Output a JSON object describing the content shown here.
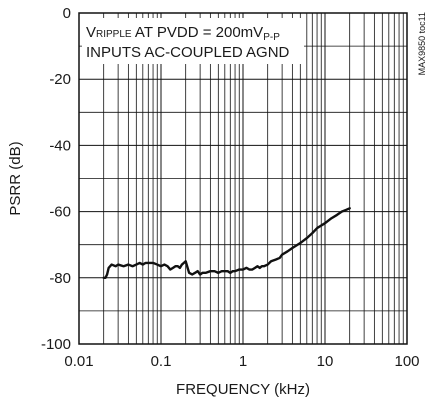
{
  "chart_data": {
    "type": "line",
    "title": "",
    "xlabel": "FREQUENCY (kHz)",
    "ylabel": "PSRR (dB)",
    "xscale": "log",
    "xlim": [
      0.01,
      100
    ],
    "ylim": [
      -100,
      0
    ],
    "grid": true,
    "x_ticks": [
      0.01,
      0.1,
      1,
      10,
      100
    ],
    "x_tick_labels": [
      "0.01",
      "0.1",
      "1",
      "10",
      "100"
    ],
    "y_ticks": [
      0,
      -20,
      -40,
      -60,
      -80,
      -100
    ],
    "y_tick_labels": [
      "0",
      "-20",
      "-40",
      "-60",
      "-80",
      "-100"
    ],
    "annotation": {
      "line1_v": "V",
      "line1_sub": "RIPPLE",
      "line1_mid": " AT PVDD = 200mV",
      "line1_sub2": "P-P",
      "line2": "INPUTS AC-COUPLED AGND"
    },
    "side_label": "MAX9850 toc11",
    "series": [
      {
        "color": "#111111",
        "x": [
          0.02,
          0.021,
          0.022,
          0.023,
          0.025,
          0.028,
          0.03,
          0.035,
          0.04,
          0.045,
          0.05,
          0.055,
          0.06,
          0.065,
          0.07,
          0.08,
          0.09,
          0.1,
          0.11,
          0.12,
          0.13,
          0.14,
          0.15,
          0.16,
          0.17,
          0.18,
          0.19,
          0.2,
          0.22,
          0.24,
          0.26,
          0.28,
          0.3,
          0.32,
          0.35,
          0.4,
          0.45,
          0.5,
          0.55,
          0.6,
          0.65,
          0.7,
          0.75,
          0.8,
          0.9,
          1.0,
          1.1,
          1.2,
          1.3,
          1.4,
          1.5,
          1.6,
          1.7,
          1.8,
          2.0,
          2.2,
          2.5,
          2.8,
          3.0,
          3.5,
          4.0,
          5.0,
          6.0,
          7.0,
          8.0,
          10.0,
          12.0,
          14.0,
          16.0,
          18.0,
          20.0
        ],
        "y": [
          -80,
          -80,
          -79,
          -77,
          -76,
          -76.5,
          -76,
          -76.5,
          -76,
          -76.5,
          -76,
          -75.5,
          -76,
          -75.5,
          -75.5,
          -75.5,
          -76,
          -76.5,
          -76,
          -76.5,
          -77.5,
          -77,
          -76.5,
          -76.5,
          -77,
          -76,
          -75.5,
          -75,
          -78.5,
          -79,
          -78.5,
          -78,
          -79,
          -78.5,
          -78.5,
          -78,
          -78,
          -78.5,
          -78,
          -78,
          -78,
          -78.5,
          -78,
          -78,
          -77.5,
          -77.5,
          -77,
          -77.5,
          -77.5,
          -77,
          -76.5,
          -77,
          -76.5,
          -76.5,
          -76,
          -75,
          -74.5,
          -74,
          -73,
          -72,
          -71,
          -69.5,
          -68,
          -66.5,
          -65,
          -63.5,
          -62,
          -61,
          -60,
          -59.5,
          -59
        ]
      }
    ]
  }
}
